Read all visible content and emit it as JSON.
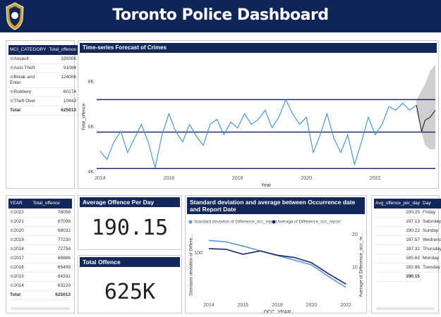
{
  "header": {
    "title": "Toronto Police Dashboard"
  },
  "mci_table": {
    "columns": [
      "MCI_CATEGORY",
      "Total_offence"
    ],
    "rows": [
      [
        "Assault",
        339306
      ],
      [
        "Auto Theft",
        91084
      ],
      [
        "Break and Enter",
        124006
      ],
      [
        "Robbery",
        60174
      ],
      [
        "Theft Over",
        10443
      ]
    ],
    "total": [
      "Total",
      625013
    ]
  },
  "year_table": {
    "columns": [
      "YEAR",
      "Total_offence"
    ],
    "rows": [
      [
        2022,
        78058
      ],
      [
        2021,
        67098
      ],
      [
        2020,
        68032
      ],
      [
        2019,
        77230
      ],
      [
        2018,
        72758
      ],
      [
        2017,
        68886
      ],
      [
        2016,
        65499
      ],
      [
        2015,
        64332
      ],
      [
        2014,
        63120
      ]
    ],
    "total": [
      "Total",
      625013
    ]
  },
  "avg_card": {
    "title": "Average Offence Per Day",
    "value": 190.15
  },
  "total_card": {
    "title": "Total Offence",
    "value": "625K"
  },
  "day_table": {
    "columns": [
      "Avg_offence_per_day",
      "Day"
    ],
    "rows": [
      [
        200.25,
        "Friday"
      ],
      [
        197.13,
        "Saturday"
      ],
      [
        190.22,
        "Sunday"
      ],
      [
        187.57,
        "Wednesday"
      ],
      [
        187.32,
        "Thursday"
      ],
      [
        185.63,
        "Monday"
      ],
      [
        182.88,
        "Tuesday"
      ]
    ],
    "total": [
      190.15
    ]
  },
  "chart_data": [
    {
      "type": "line",
      "title": "Time-series Forecast of Crimes",
      "x_label": "Year",
      "y_label": "Total_offence",
      "xlim": [
        2013.9,
        2023.75
      ],
      "xticks": [
        2014,
        2016,
        2018,
        2020,
        2022
      ],
      "ylim": [
        3950,
        8950
      ],
      "yticks": [
        {
          "value": 4000,
          "label": "4K"
        },
        {
          "value": 6000,
          "label": "6K"
        },
        {
          "value": 8000,
          "label": "8K"
        }
      ],
      "reference_lines": {
        "color": "#1f2d6b",
        "values": [
          7220,
          5780,
          4160
        ]
      },
      "band": {
        "color": "#cfcfcf",
        "x": [
          2023.2,
          2023.45,
          2023.6,
          2023.75
        ],
        "lower": [
          6700,
          5200,
          5000,
          5030
        ],
        "upper": [
          7200,
          7900,
          8500,
          8780
        ]
      },
      "series": [
        {
          "color": "#3d8fd9",
          "x": [
            2014.0,
            2014.2,
            2014.4,
            2014.6,
            2014.8,
            2015.0,
            2015.2,
            2015.4,
            2015.6,
            2015.8,
            2016.0,
            2016.2,
            2016.4,
            2016.6,
            2016.8,
            2017.0,
            2017.2,
            2017.4,
            2017.6,
            2017.8,
            2018.0,
            2018.2,
            2018.4,
            2018.6,
            2018.8,
            2019.0,
            2019.2,
            2019.4,
            2019.6,
            2019.8,
            2020.0,
            2020.2,
            2020.4,
            2020.6,
            2020.8,
            2021.0,
            2021.2,
            2021.4,
            2021.6,
            2021.8,
            2022.0,
            2022.2,
            2022.4,
            2022.6,
            2022.8,
            2023.0,
            2023.2
          ],
          "values": [
            4940,
            4560,
            5340,
            5810,
            4870,
            5500,
            6120,
            5340,
            4190,
            5660,
            6590,
            5810,
            5340,
            6120,
            5590,
            5190,
            6120,
            6340,
            5660,
            6220,
            5970,
            6590,
            6120,
            6340,
            6750,
            5970,
            6440,
            7220,
            6590,
            6120,
            6440,
            4870,
            5660,
            6590,
            5500,
            4870,
            5660,
            4340,
            5340,
            6440,
            5660,
            6120,
            6910,
            6750,
            7060,
            6750,
            6970
          ]
        },
        {
          "color": "#222222",
          "x": [
            2023.2,
            2023.35,
            2023.45,
            2023.6,
            2023.75
          ],
          "values": [
            6970,
            5800,
            6300,
            6440,
            6750
          ]
        }
      ]
    },
    {
      "type": "line",
      "title": "Standard deviation and average between Occurrence date and Report Date",
      "x_label": "OCC_YEAR",
      "y_label": "Standard deviation of Differe...",
      "y2_label": "Average of Difference_occ_re...",
      "x": [
        2014,
        2015,
        2016,
        2017,
        2018,
        2019,
        2020,
        2021,
        2022
      ],
      "xlim": [
        2013.8,
        2022.2
      ],
      "xticks": [
        2014,
        2016,
        2018,
        2020,
        2022
      ],
      "ylim": [
        0,
        150
      ],
      "yticks": [
        100
      ],
      "y2lim": [
        0,
        21.5
      ],
      "y2ticks": [
        10,
        20
      ],
      "series": [
        {
          "name": "Standard deviation of Difference_occ_report",
          "color": "#5b9bd5",
          "values": [
            127,
            124,
            115,
            105,
            95,
            85,
            75,
            50,
            27
          ]
        },
        {
          "name": "Average of Difference_occ_report",
          "color": "#1a2370",
          "axis": "y2",
          "values": [
            15.7,
            15.5,
            14,
            15,
            13.7,
            13,
            11.4,
            8,
            4.9
          ]
        }
      ]
    }
  ]
}
